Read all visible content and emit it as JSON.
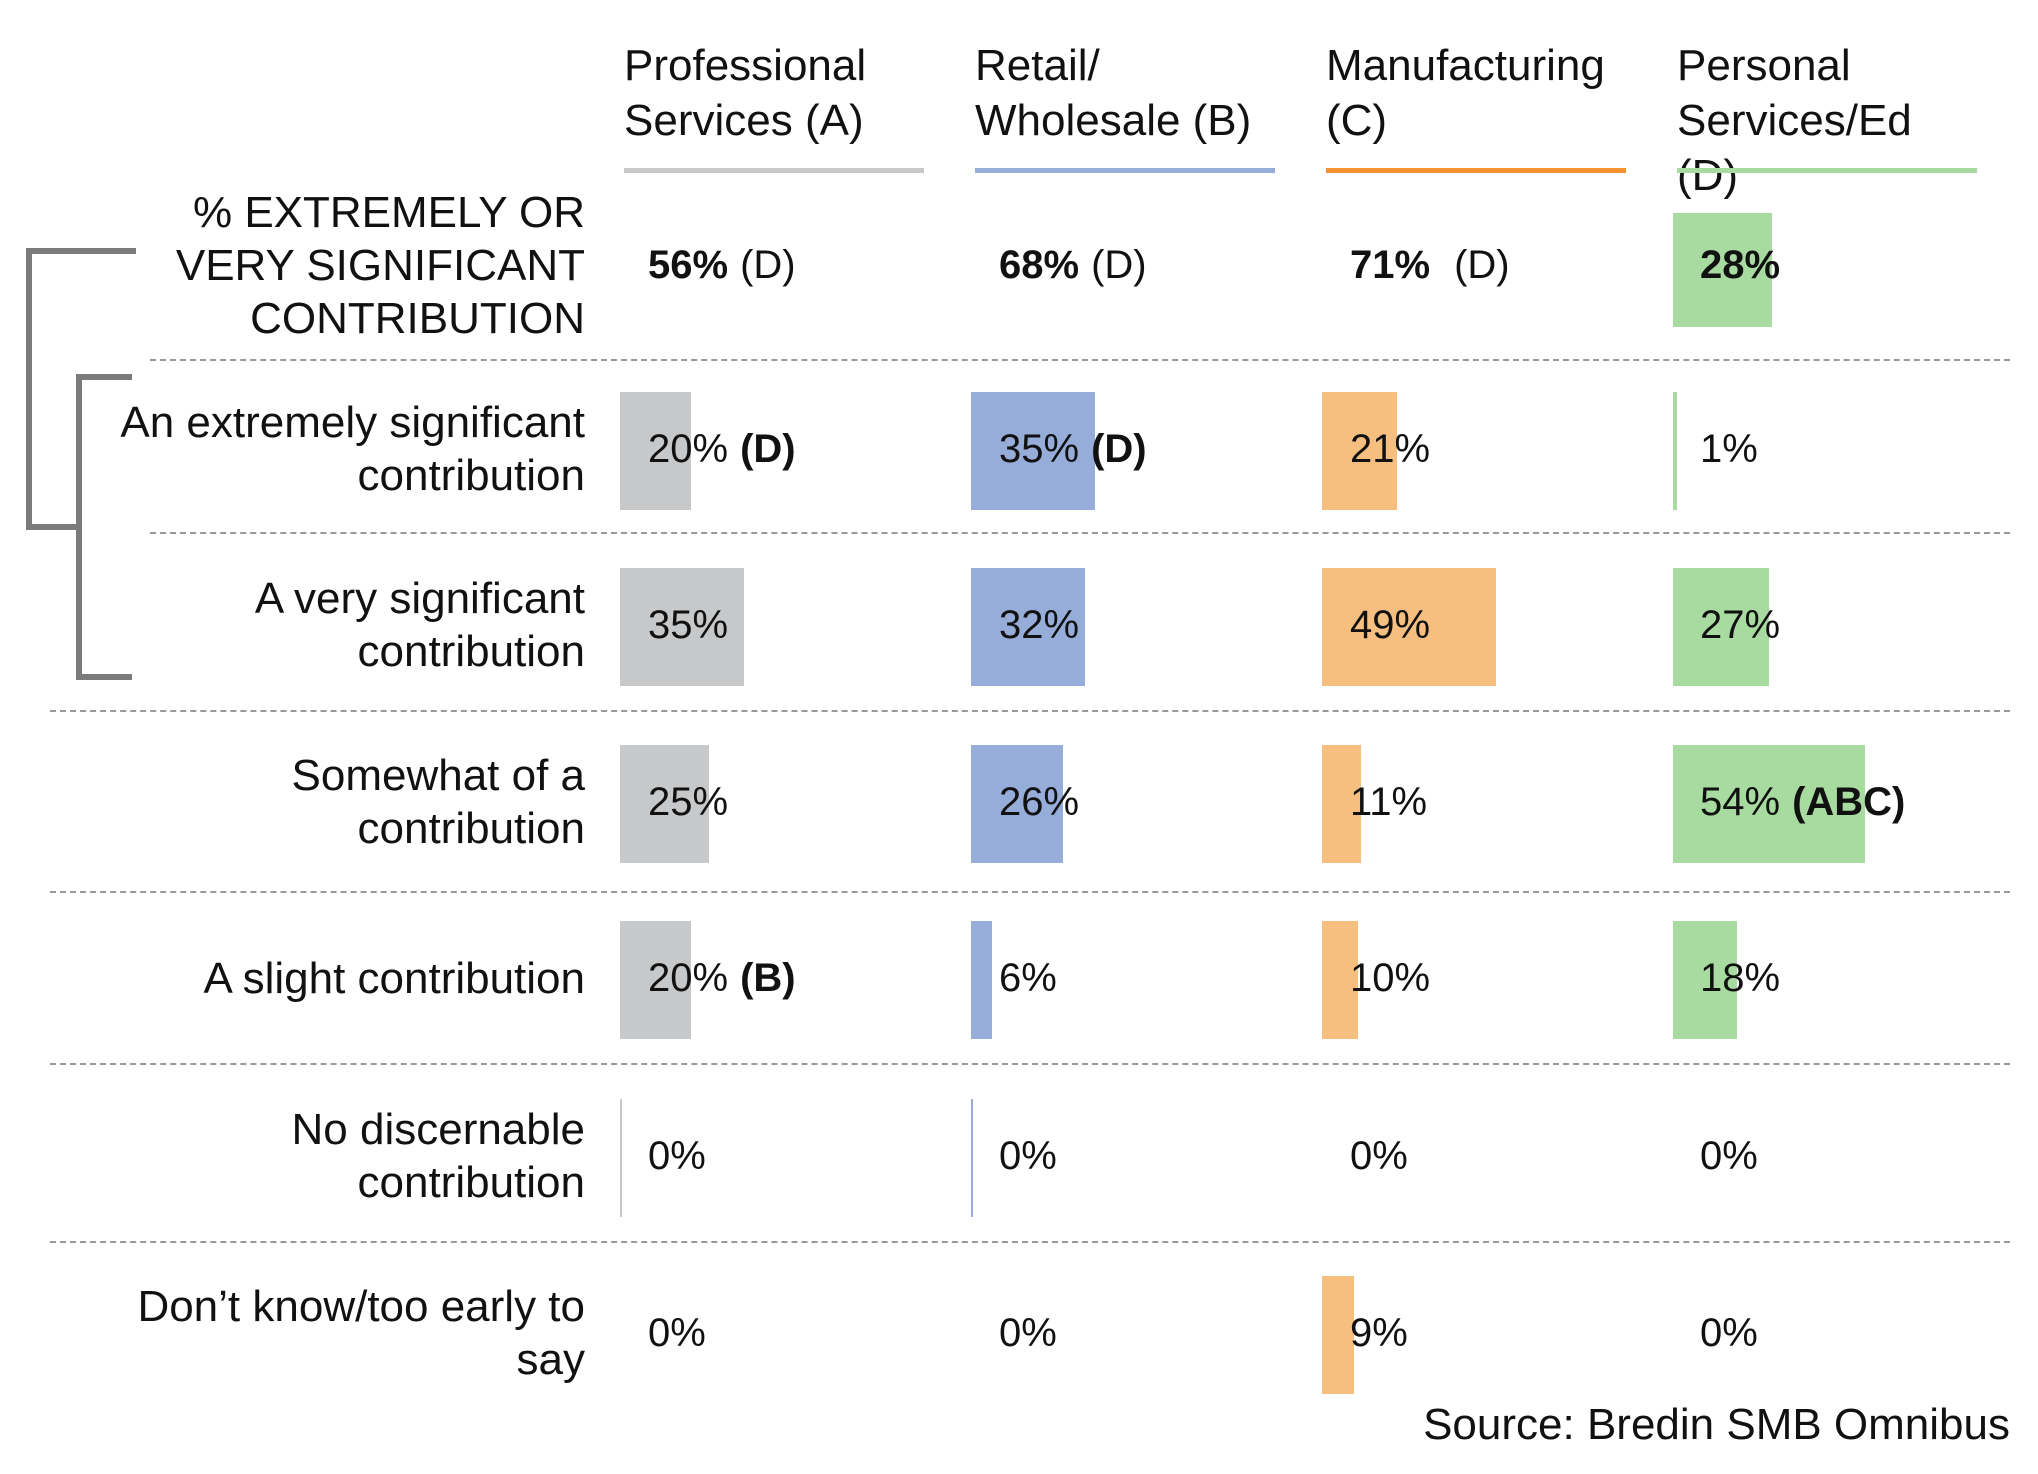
{
  "chart_data": {
    "type": "table",
    "columns": [
      {
        "id": "A",
        "label_line1": "Professional",
        "label_line2": "Services (A)",
        "color": "#c6c8ca"
      },
      {
        "id": "B",
        "label_line1": "Retail/",
        "label_line2": "Wholesale (B)",
        "color": "#97add9"
      },
      {
        "id": "C",
        "label_line1": "Manufacturing",
        "label_line2": "(C)",
        "color": "#f6bf80"
      },
      {
        "id": "D",
        "label_line1": "Personal",
        "label_line2": "Services/Ed (D)",
        "color": "#a8dba0"
      }
    ],
    "header_line_colors": [
      "#c6c8ca",
      "#97add9",
      "#f59332",
      "#a8dba0"
    ],
    "rows": [
      {
        "label_line1": "% EXTREMELY OR",
        "label_line2": "VERY SIGNIFICANT",
        "label_line3": "CONTRIBUTION",
        "summary": true,
        "values": [
          56,
          68,
          71,
          28
        ],
        "texts": [
          "56%",
          "68%",
          "71%",
          "28%"
        ],
        "sig": [
          "(D)",
          "(D)",
          "(D)",
          ""
        ]
      },
      {
        "label_line1": "An extremely significant",
        "label_line2": "contribution",
        "values": [
          20,
          35,
          21,
          1
        ],
        "texts": [
          "20%",
          "35%",
          "21%",
          "1%"
        ],
        "sig": [
          "(D)",
          "(D)",
          "",
          ""
        ]
      },
      {
        "label_line1": "A very significant",
        "label_line2": "contribution",
        "values": [
          35,
          32,
          49,
          27
        ],
        "texts": [
          "35%",
          "32%",
          "49%",
          "27%"
        ],
        "sig": [
          "",
          "",
          "",
          ""
        ]
      },
      {
        "label_line1": "Somewhat of a",
        "label_line2": "contribution",
        "values": [
          25,
          26,
          11,
          54
        ],
        "texts": [
          "25%",
          "26%",
          "11%",
          "54%"
        ],
        "sig": [
          "",
          "",
          "",
          "(ABC)"
        ]
      },
      {
        "label_line1": "A slight contribution",
        "label_line2": "",
        "values": [
          20,
          6,
          10,
          18
        ],
        "texts": [
          "20%",
          "6%",
          "10%",
          "18%"
        ],
        "sig": [
          "(B)",
          "",
          "",
          ""
        ]
      },
      {
        "label_line1": "No discernable",
        "label_line2": "contribution",
        "values": [
          0,
          0,
          0,
          0
        ],
        "texts": [
          "0%",
          "0%",
          "0%",
          "0%"
        ],
        "sig": [
          "",
          "",
          "",
          ""
        ]
      },
      {
        "label_line1": "Don’t know/too early to",
        "label_line2": "say",
        "values": [
          0,
          0,
          9,
          0
        ],
        "texts": [
          "0%",
          "0%",
          "9%",
          "0%"
        ],
        "sig": [
          "",
          "",
          "",
          ""
        ]
      }
    ],
    "source": "Source: Bredin SMB Omnibus"
  }
}
